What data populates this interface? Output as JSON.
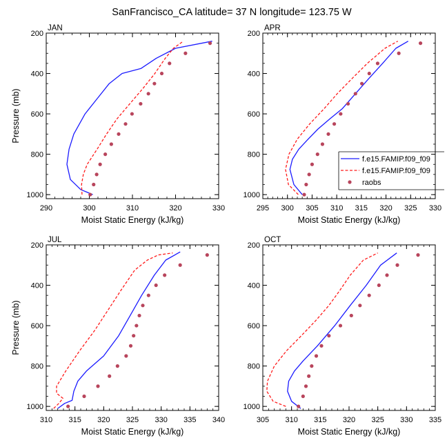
{
  "title": "SanFrancisco_CA  latitude= 37 N longitude= 123.75 W",
  "colors": {
    "model1": "#1a1aff",
    "model2": "#ff1a1a",
    "obs": "#b8455c"
  },
  "legend": {
    "entries": [
      {
        "label": "f.e15.FAMIP.f09_f09",
        "style": "solid-line",
        "color": "#1a1aff"
      },
      {
        "label": "f.e15.FAMIP.f09_f09",
        "style": "dashed-line",
        "color": "#ff1a1a"
      },
      {
        "label": "raobs",
        "style": "marker",
        "color": "#b8455c"
      }
    ]
  },
  "chart_data": [
    {
      "type": "line",
      "panel_label": "JAN",
      "xlabel": "Moist Static Energy (kJ/kg)",
      "ylabel": "Pressure (mb)",
      "xlim": [
        290,
        330
      ],
      "ylim": [
        1020,
        200
      ],
      "xticks": [
        290,
        300,
        310,
        320,
        330
      ],
      "yticks": [
        200,
        400,
        600,
        800,
        1000
      ],
      "series": [
        {
          "name": "f.e15.FAMIP.f09_f09",
          "style": "solid",
          "color": "#1a1aff",
          "x": [
            300.8,
            298.0,
            295.6,
            294.8,
            295.3,
            296.4,
            299.0,
            301.8,
            304.6,
            307.6,
            312.0,
            315.5,
            320.0,
            328.5
          ],
          "y": [
            1000,
            975,
            925,
            850,
            775,
            700,
            600,
            525,
            450,
            400,
            375,
            325,
            275,
            240
          ]
        },
        {
          "name": "f.e15.FAMIP.f09_f09",
          "style": "dashed",
          "color": "#ff1a1a",
          "x": [
            298.3,
            298.2,
            298.6,
            299.5,
            301.8,
            304.0,
            306.4,
            309.4,
            312.4,
            315.2,
            317.6,
            319.5,
            321.8
          ],
          "y": [
            1000,
            950,
            900,
            850,
            775,
            700,
            625,
            550,
            475,
            400,
            325,
            275,
            240
          ]
        },
        {
          "name": "raobs",
          "style": "marker",
          "color": "#b8455c",
          "x": [
            300.2,
            301.0,
            301.7,
            302.5,
            303.7,
            305.1,
            306.8,
            308.4,
            309.9,
            311.9,
            313.7,
            315.1,
            316.8,
            318.6,
            322.3,
            328.0
          ],
          "y": [
            1000,
            950,
            900,
            850,
            800,
            750,
            700,
            650,
            600,
            550,
            500,
            450,
            400,
            350,
            300,
            250
          ]
        }
      ]
    },
    {
      "type": "line",
      "panel_label": "APR",
      "xlabel": "Moist Static Energy (kJ/kg)",
      "ylabel": "",
      "xlim": [
        295,
        330
      ],
      "ylim": [
        1020,
        200
      ],
      "xticks": [
        295,
        300,
        305,
        310,
        315,
        320,
        325,
        330
      ],
      "yticks": [
        200,
        400,
        600,
        800,
        1000
      ],
      "series": [
        {
          "name": "f.e15.FAMIP.f09_f09",
          "style": "solid",
          "color": "#1a1aff",
          "x": [
            303.0,
            301.3,
            300.5,
            301.0,
            302.3,
            304.2,
            306.2,
            308.6,
            311.1,
            313.8,
            316.5,
            319.3,
            322.0,
            324.5
          ],
          "y": [
            1000,
            950,
            875,
            825,
            775,
            725,
            675,
            625,
            575,
            500,
            425,
            350,
            275,
            240
          ]
        },
        {
          "name": "f.e15.FAMIP.f09_f09",
          "style": "dashed",
          "color": "#ff1a1a",
          "x": [
            302.2,
            300.2,
            299.6,
            300.3,
            302.0,
            304.5,
            307.4,
            310.1,
            313.1,
            316.2,
            319.8,
            322.4
          ],
          "y": [
            1000,
            950,
            875,
            800,
            725,
            650,
            575,
            500,
            425,
            350,
            275,
            240
          ]
        },
        {
          "name": "raobs",
          "style": "marker",
          "color": "#b8455c",
          "x": [
            303.4,
            303.8,
            304.4,
            305.0,
            306.1,
            307.1,
            308.3,
            309.5,
            310.8,
            312.3,
            313.8,
            315.1,
            316.6,
            318.3,
            322.6,
            327.0
          ],
          "y": [
            1000,
            950,
            900,
            850,
            800,
            750,
            700,
            650,
            600,
            550,
            500,
            450,
            400,
            350,
            300,
            250
          ]
        }
      ]
    },
    {
      "type": "line",
      "panel_label": "JUL",
      "xlabel": "Moist Static Energy (kJ/kg)",
      "ylabel": "Pressure (mb)",
      "xlim": [
        310,
        340
      ],
      "ylim": [
        1020,
        200
      ],
      "xticks": [
        310,
        315,
        320,
        325,
        330,
        335,
        340
      ],
      "yticks": [
        200,
        400,
        600,
        800,
        1000
      ],
      "series": [
        {
          "name": "f.e15.FAMIP.f09_f09",
          "style": "solid",
          "color": "#1a1aff",
          "x": [
            312.0,
            313.2,
            314.5,
            314.8,
            315.5,
            317.0,
            320.0,
            322.6,
            324.6,
            326.6,
            328.8,
            330.8,
            333.3
          ],
          "y": [
            1010,
            985,
            970,
            925,
            875,
            825,
            750,
            650,
            550,
            450,
            350,
            275,
            235
          ]
        },
        {
          "name": "f.e15.FAMIP.f09_f09",
          "style": "dashed",
          "color": "#ff1a1a",
          "x": [
            311.3,
            312.2,
            312.9,
            311.8,
            311.8,
            313.4,
            315.8,
            318.4,
            320.7,
            323.0,
            325.4,
            327.6,
            329.5,
            332.0
          ],
          "y": [
            1010,
            985,
            960,
            935,
            900,
            825,
            725,
            625,
            525,
            425,
            325,
            275,
            250,
            240
          ]
        },
        {
          "name": "raobs",
          "style": "marker",
          "color": "#b8455c",
          "x": [
            313.8,
            316.6,
            319.0,
            321.0,
            322.4,
            323.9,
            324.7,
            325.2,
            325.7,
            326.2,
            326.8,
            327.8,
            329.1,
            330.6,
            333.3,
            338.0
          ],
          "y": [
            1000,
            950,
            900,
            850,
            800,
            750,
            700,
            650,
            600,
            550,
            500,
            450,
            400,
            350,
            300,
            250
          ]
        }
      ]
    },
    {
      "type": "line",
      "panel_label": "OCT",
      "xlabel": "Moist Static Energy (kJ/kg)",
      "ylabel": "",
      "xlim": [
        305,
        335
      ],
      "ylim": [
        1020,
        200
      ],
      "xticks": [
        305,
        310,
        315,
        320,
        325,
        330,
        335
      ],
      "yticks": [
        200,
        400,
        600,
        800,
        1000
      ],
      "series": [
        {
          "name": "f.e15.FAMIP.f09_f09",
          "style": "solid",
          "color": "#1a1aff",
          "x": [
            311.6,
            310.0,
            309.3,
            309.5,
            310.5,
            312.0,
            314.5,
            317.5,
            320.2,
            323.0,
            325.5,
            328.3
          ],
          "y": [
            1010,
            975,
            925,
            875,
            825,
            775,
            700,
            600,
            500,
            400,
            300,
            240
          ]
        },
        {
          "name": "f.e15.FAMIP.f09_f09",
          "style": "dashed",
          "color": "#ff1a1a",
          "x": [
            309.0,
            306.8,
            305.7,
            305.8,
            307.0,
            309.1,
            311.7,
            314.2,
            316.5,
            318.4,
            320.2,
            322.5,
            325.0
          ],
          "y": [
            1000,
            975,
            925,
            875,
            800,
            725,
            650,
            575,
            500,
            425,
            350,
            275,
            240
          ]
        },
        {
          "name": "raobs",
          "style": "marker",
          "color": "#b8455c",
          "x": [
            311.2,
            312.0,
            312.5,
            313.0,
            313.5,
            314.3,
            315.2,
            316.5,
            318.5,
            320.4,
            321.9,
            323.5,
            325.2,
            326.6,
            328.4,
            332.0
          ],
          "y": [
            1000,
            950,
            900,
            850,
            800,
            750,
            700,
            650,
            600,
            550,
            500,
            450,
            400,
            350,
            300,
            250
          ]
        }
      ]
    }
  ]
}
